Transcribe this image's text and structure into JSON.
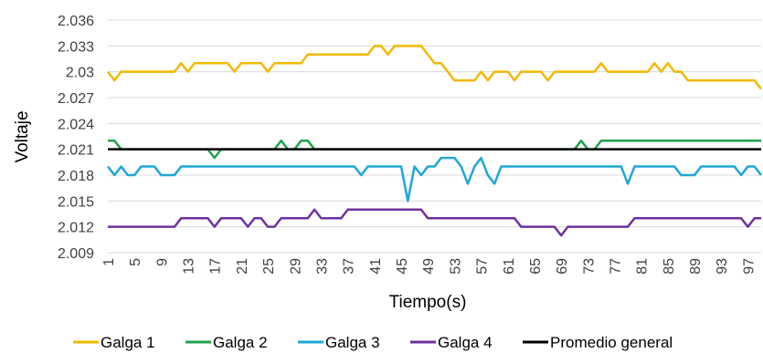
{
  "chart_data": {
    "type": "line",
    "xlabel": "Tiempo(s)",
    "ylabel": "Voltaje",
    "ylim": [
      2.009,
      2.036
    ],
    "y_ticks": [
      "2.036",
      "2.033",
      "2.03",
      "2.027",
      "2.024",
      "2.021",
      "2.018",
      "2.015",
      "2.012",
      "2.009"
    ],
    "x": [
      1,
      2,
      3,
      4,
      5,
      6,
      7,
      8,
      9,
      10,
      11,
      12,
      13,
      14,
      15,
      16,
      17,
      18,
      19,
      20,
      21,
      22,
      23,
      24,
      25,
      26,
      27,
      28,
      29,
      30,
      31,
      32,
      33,
      34,
      35,
      36,
      37,
      38,
      39,
      40,
      41,
      42,
      43,
      44,
      45,
      46,
      47,
      48,
      49,
      50,
      51,
      52,
      53,
      54,
      55,
      56,
      57,
      58,
      59,
      60,
      61,
      62,
      63,
      64,
      65,
      66,
      67,
      68,
      69,
      70,
      71,
      72,
      73,
      74,
      75,
      76,
      77,
      78,
      79,
      80,
      81,
      82,
      83,
      84,
      85,
      86,
      87,
      88,
      89,
      90,
      91,
      92,
      93,
      94,
      95,
      96,
      97,
      98,
      99
    ],
    "x_tick_labels": [
      "1",
      "5",
      "9",
      "13",
      "17",
      "21",
      "25",
      "29",
      "33",
      "37",
      "41",
      "45",
      "49",
      "53",
      "57",
      "61",
      "65",
      "69",
      "73",
      "77",
      "81",
      "85",
      "89",
      "93",
      "97"
    ],
    "x_tick_values": [
      1,
      5,
      9,
      13,
      17,
      21,
      25,
      29,
      33,
      37,
      41,
      45,
      49,
      53,
      57,
      61,
      65,
      69,
      73,
      77,
      81,
      85,
      89,
      93,
      97
    ],
    "grid": "horizontal",
    "legend_position": "bottom",
    "series": [
      {
        "name": "Galga 1",
        "color": "#F2B800",
        "values": [
          2.03,
          2.029,
          2.03,
          2.03,
          2.03,
          2.03,
          2.03,
          2.03,
          2.03,
          2.03,
          2.03,
          2.031,
          2.03,
          2.031,
          2.031,
          2.031,
          2.031,
          2.031,
          2.031,
          2.03,
          2.031,
          2.031,
          2.031,
          2.031,
          2.03,
          2.031,
          2.031,
          2.031,
          2.031,
          2.031,
          2.032,
          2.032,
          2.032,
          2.032,
          2.032,
          2.032,
          2.032,
          2.032,
          2.032,
          2.032,
          2.033,
          2.033,
          2.032,
          2.033,
          2.033,
          2.033,
          2.033,
          2.033,
          2.032,
          2.031,
          2.031,
          2.03,
          2.029,
          2.029,
          2.029,
          2.029,
          2.03,
          2.029,
          2.03,
          2.03,
          2.03,
          2.029,
          2.03,
          2.03,
          2.03,
          2.03,
          2.029,
          2.03,
          2.03,
          2.03,
          2.03,
          2.03,
          2.03,
          2.03,
          2.031,
          2.03,
          2.03,
          2.03,
          2.03,
          2.03,
          2.03,
          2.03,
          2.031,
          2.03,
          2.031,
          2.03,
          2.03,
          2.029,
          2.029,
          2.029,
          2.029,
          2.029,
          2.029,
          2.029,
          2.029,
          2.029,
          2.029,
          2.029,
          2.028
        ]
      },
      {
        "name": "Galga 2",
        "color": "#1FA14B",
        "values": [
          2.022,
          2.022,
          2.021,
          2.021,
          2.021,
          2.021,
          2.021,
          2.021,
          2.021,
          2.021,
          2.021,
          2.021,
          2.021,
          2.021,
          2.021,
          2.021,
          2.02,
          2.021,
          2.021,
          2.021,
          2.021,
          2.021,
          2.021,
          2.021,
          2.021,
          2.021,
          2.022,
          2.021,
          2.021,
          2.022,
          2.022,
          2.021,
          2.021,
          2.021,
          2.021,
          2.021,
          2.021,
          2.021,
          2.021,
          2.021,
          2.021,
          2.021,
          2.021,
          2.021,
          2.021,
          2.021,
          2.021,
          2.021,
          2.021,
          2.021,
          2.021,
          2.021,
          2.021,
          2.021,
          2.021,
          2.021,
          2.021,
          2.021,
          2.021,
          2.021,
          2.021,
          2.021,
          2.021,
          2.021,
          2.021,
          2.021,
          2.021,
          2.021,
          2.021,
          2.021,
          2.021,
          2.022,
          2.021,
          2.021,
          2.022,
          2.022,
          2.022,
          2.022,
          2.022,
          2.022,
          2.022,
          2.022,
          2.022,
          2.022,
          2.022,
          2.022,
          2.022,
          2.022,
          2.022,
          2.022,
          2.022,
          2.022,
          2.022,
          2.022,
          2.022,
          2.022,
          2.022,
          2.022,
          2.022
        ]
      },
      {
        "name": "Galga 3",
        "color": "#1FA7D6",
        "values": [
          2.019,
          2.018,
          2.019,
          2.018,
          2.018,
          2.019,
          2.019,
          2.019,
          2.018,
          2.018,
          2.018,
          2.019,
          2.019,
          2.019,
          2.019,
          2.019,
          2.019,
          2.019,
          2.019,
          2.019,
          2.019,
          2.019,
          2.019,
          2.019,
          2.019,
          2.019,
          2.019,
          2.019,
          2.019,
          2.019,
          2.019,
          2.019,
          2.019,
          2.019,
          2.019,
          2.019,
          2.019,
          2.019,
          2.018,
          2.019,
          2.019,
          2.019,
          2.019,
          2.019,
          2.019,
          2.015,
          2.019,
          2.018,
          2.019,
          2.019,
          2.02,
          2.02,
          2.02,
          2.019,
          2.017,
          2.019,
          2.02,
          2.018,
          2.017,
          2.019,
          2.019,
          2.019,
          2.019,
          2.019,
          2.019,
          2.019,
          2.019,
          2.019,
          2.019,
          2.019,
          2.019,
          2.019,
          2.019,
          2.019,
          2.019,
          2.019,
          2.019,
          2.019,
          2.017,
          2.019,
          2.019,
          2.019,
          2.019,
          2.019,
          2.019,
          2.019,
          2.018,
          2.018,
          2.018,
          2.019,
          2.019,
          2.019,
          2.019,
          2.019,
          2.019,
          2.018,
          2.019,
          2.019,
          2.018
        ]
      },
      {
        "name": "Galga 4",
        "color": "#7030A0",
        "values": [
          2.012,
          2.012,
          2.012,
          2.012,
          2.012,
          2.012,
          2.012,
          2.012,
          2.012,
          2.012,
          2.012,
          2.013,
          2.013,
          2.013,
          2.013,
          2.013,
          2.012,
          2.013,
          2.013,
          2.013,
          2.013,
          2.012,
          2.013,
          2.013,
          2.012,
          2.012,
          2.013,
          2.013,
          2.013,
          2.013,
          2.013,
          2.014,
          2.013,
          2.013,
          2.013,
          2.013,
          2.014,
          2.014,
          2.014,
          2.014,
          2.014,
          2.014,
          2.014,
          2.014,
          2.014,
          2.014,
          2.014,
          2.014,
          2.013,
          2.013,
          2.013,
          2.013,
          2.013,
          2.013,
          2.013,
          2.013,
          2.013,
          2.013,
          2.013,
          2.013,
          2.013,
          2.013,
          2.012,
          2.012,
          2.012,
          2.012,
          2.012,
          2.012,
          2.011,
          2.012,
          2.012,
          2.012,
          2.012,
          2.012,
          2.012,
          2.012,
          2.012,
          2.012,
          2.012,
          2.013,
          2.013,
          2.013,
          2.013,
          2.013,
          2.013,
          2.013,
          2.013,
          2.013,
          2.013,
          2.013,
          2.013,
          2.013,
          2.013,
          2.013,
          2.013,
          2.013,
          2.012,
          2.013,
          2.013
        ]
      },
      {
        "name": "Promedio general",
        "color": "#000000",
        "values": [
          2.021,
          2.021,
          2.021,
          2.021,
          2.021,
          2.021,
          2.021,
          2.021,
          2.021,
          2.021,
          2.021,
          2.021,
          2.021,
          2.021,
          2.021,
          2.021,
          2.021,
          2.021,
          2.021,
          2.021,
          2.021,
          2.021,
          2.021,
          2.021,
          2.021,
          2.021,
          2.021,
          2.021,
          2.021,
          2.021,
          2.021,
          2.021,
          2.021,
          2.021,
          2.021,
          2.021,
          2.021,
          2.021,
          2.021,
          2.021,
          2.021,
          2.021,
          2.021,
          2.021,
          2.021,
          2.021,
          2.021,
          2.021,
          2.021,
          2.021,
          2.021,
          2.021,
          2.021,
          2.021,
          2.021,
          2.021,
          2.021,
          2.021,
          2.021,
          2.021,
          2.021,
          2.021,
          2.021,
          2.021,
          2.021,
          2.021,
          2.021,
          2.021,
          2.021,
          2.021,
          2.021,
          2.021,
          2.021,
          2.021,
          2.021,
          2.021,
          2.021,
          2.021,
          2.021,
          2.021,
          2.021,
          2.021,
          2.021,
          2.021,
          2.021,
          2.021,
          2.021,
          2.021,
          2.021,
          2.021,
          2.021,
          2.021,
          2.021,
          2.021,
          2.021,
          2.021,
          2.021,
          2.021,
          2.021
        ]
      }
    ]
  }
}
